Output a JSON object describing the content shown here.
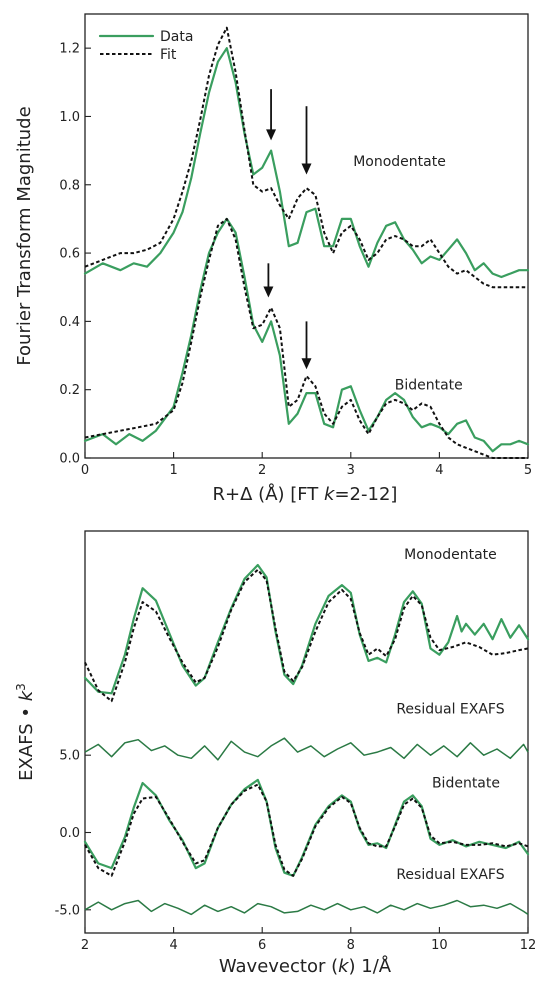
{
  "colors": {
    "data": "#3a9e5f",
    "fit": "#111111",
    "residual": "#2b7a45",
    "frame": "#222222"
  },
  "chart_data": [
    {
      "type": "line",
      "xlabel_parts": [
        "R+Δ (Å) [FT ",
        "k",
        "=2-12]"
      ],
      "ylabel": "Fourier Transform Magnitude",
      "xlim": [
        0,
        5
      ],
      "ylim": [
        0,
        1.3
      ],
      "x_ticks": [
        0,
        1,
        2,
        3,
        4,
        5
      ],
      "x_tick_labels": [
        "0",
        "1",
        "2",
        "3",
        "4",
        "5"
      ],
      "y_ticks": [
        0.0,
        0.2,
        0.4,
        0.6,
        0.8,
        1.0,
        1.2
      ],
      "y_tick_labels": [
        "0.0",
        "0.2",
        "0.4",
        "0.6",
        "0.8",
        "1.0",
        "1.2"
      ],
      "legend": {
        "position": "top-left",
        "entries": [
          {
            "label": "Data",
            "style": "solid"
          },
          {
            "label": "Fit",
            "style": "dashed"
          }
        ]
      },
      "annotations": [
        {
          "text": "Monodentate",
          "x": 3.55,
          "y": 0.855
        },
        {
          "text": "Bidentate",
          "x": 3.88,
          "y": 0.2
        }
      ],
      "arrows": [
        {
          "x": 2.1,
          "y_from": 1.08,
          "y_to": 0.93
        },
        {
          "x": 2.5,
          "y_from": 1.03,
          "y_to": 0.83
        },
        {
          "x": 2.07,
          "y_from": 0.57,
          "y_to": 0.47
        },
        {
          "x": 2.5,
          "y_from": 0.4,
          "y_to": 0.26
        }
      ],
      "series": [
        {
          "name": "Data",
          "group": "Monodentate",
          "style": "solid",
          "x": [
            0,
            0.2,
            0.4,
            0.55,
            0.7,
            0.85,
            1.0,
            1.1,
            1.2,
            1.3,
            1.4,
            1.5,
            1.6,
            1.7,
            1.8,
            1.9,
            2.0,
            2.1,
            2.2,
            2.3,
            2.4,
            2.5,
            2.6,
            2.7,
            2.8,
            2.9,
            3.0,
            3.1,
            3.2,
            3.3,
            3.4,
            3.5,
            3.6,
            3.7,
            3.8,
            3.9,
            4.0,
            4.1,
            4.2,
            4.3,
            4.4,
            4.5,
            4.6,
            4.7,
            4.8,
            4.9,
            5.0
          ],
          "y": [
            0.54,
            0.57,
            0.55,
            0.57,
            0.56,
            0.6,
            0.66,
            0.72,
            0.82,
            0.95,
            1.07,
            1.16,
            1.2,
            1.1,
            0.95,
            0.83,
            0.85,
            0.9,
            0.78,
            0.62,
            0.63,
            0.72,
            0.73,
            0.62,
            0.62,
            0.7,
            0.7,
            0.62,
            0.56,
            0.63,
            0.68,
            0.69,
            0.64,
            0.61,
            0.57,
            0.59,
            0.58,
            0.61,
            0.64,
            0.6,
            0.55,
            0.57,
            0.54,
            0.53,
            0.54,
            0.55,
            0.55
          ]
        },
        {
          "name": "Fit",
          "group": "Monodentate",
          "style": "dashed",
          "x": [
            0,
            0.2,
            0.4,
            0.55,
            0.7,
            0.85,
            1.0,
            1.1,
            1.2,
            1.3,
            1.4,
            1.5,
            1.6,
            1.7,
            1.8,
            1.9,
            2.0,
            2.1,
            2.2,
            2.3,
            2.4,
            2.5,
            2.6,
            2.7,
            2.8,
            2.9,
            3.0,
            3.1,
            3.2,
            3.3,
            3.4,
            3.5,
            3.6,
            3.7,
            3.8,
            3.9,
            4.0,
            4.1,
            4.2,
            4.3,
            4.4,
            4.5,
            4.6,
            4.7,
            4.8,
            4.9,
            5.0
          ],
          "y": [
            0.56,
            0.58,
            0.6,
            0.6,
            0.61,
            0.63,
            0.7,
            0.78,
            0.87,
            0.99,
            1.12,
            1.21,
            1.26,
            1.13,
            0.96,
            0.8,
            0.78,
            0.79,
            0.74,
            0.7,
            0.76,
            0.79,
            0.77,
            0.66,
            0.6,
            0.66,
            0.68,
            0.64,
            0.58,
            0.6,
            0.64,
            0.65,
            0.64,
            0.62,
            0.62,
            0.64,
            0.6,
            0.56,
            0.54,
            0.55,
            0.53,
            0.51,
            0.5,
            0.5,
            0.5,
            0.5,
            0.5
          ]
        },
        {
          "name": "Data",
          "group": "Bidentate",
          "style": "solid",
          "x": [
            0,
            0.2,
            0.35,
            0.5,
            0.65,
            0.8,
            1.0,
            1.1,
            1.2,
            1.3,
            1.4,
            1.5,
            1.6,
            1.7,
            1.8,
            1.9,
            2.0,
            2.1,
            2.2,
            2.3,
            2.4,
            2.5,
            2.6,
            2.7,
            2.8,
            2.9,
            3.0,
            3.1,
            3.2,
            3.3,
            3.4,
            3.5,
            3.6,
            3.7,
            3.8,
            3.9,
            4.0,
            4.1,
            4.2,
            4.3,
            4.4,
            4.5,
            4.6,
            4.7,
            4.8,
            4.9,
            5.0
          ],
          "y": [
            0.05,
            0.07,
            0.04,
            0.07,
            0.05,
            0.08,
            0.15,
            0.25,
            0.36,
            0.49,
            0.6,
            0.66,
            0.7,
            0.66,
            0.53,
            0.39,
            0.34,
            0.4,
            0.3,
            0.1,
            0.13,
            0.19,
            0.19,
            0.1,
            0.09,
            0.2,
            0.21,
            0.14,
            0.08,
            0.12,
            0.17,
            0.19,
            0.17,
            0.12,
            0.09,
            0.1,
            0.09,
            0.07,
            0.1,
            0.11,
            0.06,
            0.05,
            0.02,
            0.04,
            0.04,
            0.05,
            0.04
          ]
        },
        {
          "name": "Fit",
          "group": "Bidentate",
          "style": "dashed",
          "x": [
            0,
            0.2,
            0.4,
            0.6,
            0.8,
            1.0,
            1.1,
            1.2,
            1.3,
            1.4,
            1.5,
            1.6,
            1.7,
            1.8,
            1.9,
            2.0,
            2.1,
            2.2,
            2.3,
            2.4,
            2.5,
            2.6,
            2.7,
            2.8,
            2.9,
            3.0,
            3.1,
            3.2,
            3.3,
            3.4,
            3.5,
            3.6,
            3.7,
            3.8,
            3.9,
            4.0,
            4.1,
            4.2,
            4.3,
            4.4,
            4.5,
            4.6,
            4.7,
            4.8,
            4.9,
            5.0
          ],
          "y": [
            0.06,
            0.07,
            0.08,
            0.09,
            0.1,
            0.14,
            0.22,
            0.34,
            0.47,
            0.58,
            0.68,
            0.7,
            0.64,
            0.5,
            0.38,
            0.39,
            0.44,
            0.38,
            0.15,
            0.17,
            0.24,
            0.21,
            0.13,
            0.1,
            0.15,
            0.17,
            0.11,
            0.07,
            0.12,
            0.16,
            0.17,
            0.16,
            0.14,
            0.16,
            0.15,
            0.1,
            0.06,
            0.04,
            0.03,
            0.02,
            0.01,
            0.0,
            0.0,
            0.0,
            0.0,
            0.0
          ]
        }
      ]
    },
    {
      "type": "line",
      "xlabel_parts": [
        "Wavevector (",
        "k",
        ") 1/Å"
      ],
      "ylabel_parts": [
        "EXAFS • ",
        "k",
        "3"
      ],
      "xlim": [
        2,
        12
      ],
      "ylim": [
        -6.5,
        19.5
      ],
      "x_ticks": [
        2,
        4,
        6,
        8,
        10,
        12
      ],
      "x_tick_labels": [
        "2",
        "4",
        "6",
        "8",
        "10",
        "12"
      ],
      "y_ticks": [
        -5,
        0,
        5
      ],
      "y_tick_labels": [
        "-5.0",
        "0.0",
        "5.0"
      ],
      "annotations": [
        {
          "text": "Monodentate",
          "x": 10.25,
          "y": 17.7
        },
        {
          "text": "Residual EXAFS",
          "x": 10.25,
          "y": 7.7
        },
        {
          "text": "Bidentate",
          "x": 10.6,
          "y": 2.9
        },
        {
          "text": "Residual EXAFS",
          "x": 10.25,
          "y": -3.0
        }
      ],
      "series": [
        {
          "name": "Data",
          "group": "Monodentate",
          "style": "solid",
          "x": [
            2.0,
            2.3,
            2.6,
            2.9,
            3.1,
            3.3,
            3.6,
            3.9,
            4.2,
            4.5,
            4.7,
            5.0,
            5.3,
            5.6,
            5.9,
            6.1,
            6.3,
            6.5,
            6.7,
            6.9,
            7.2,
            7.5,
            7.8,
            8.0,
            8.2,
            8.4,
            8.6,
            8.8,
            9.0,
            9.2,
            9.4,
            9.6,
            9.8,
            10.0,
            10.2,
            10.4,
            10.5,
            10.6,
            10.8,
            11.0,
            11.2,
            11.4,
            11.6,
            11.8,
            12.0
          ],
          "y": [
            10.0,
            9.1,
            9.0,
            11.5,
            13.8,
            15.8,
            15.0,
            12.9,
            10.8,
            9.5,
            10.0,
            12.3,
            14.5,
            16.4,
            17.3,
            16.5,
            13.0,
            10.2,
            9.6,
            10.8,
            13.5,
            15.3,
            16.0,
            15.5,
            12.8,
            11.1,
            11.3,
            11.0,
            12.8,
            14.9,
            15.6,
            14.8,
            11.9,
            11.5,
            12.3,
            14.0,
            13.0,
            13.5,
            12.8,
            13.5,
            12.5,
            13.8,
            12.6,
            13.4,
            12.5
          ]
        },
        {
          "name": "Fit",
          "group": "Monodentate",
          "style": "dashed",
          "x": [
            2.0,
            2.3,
            2.6,
            2.9,
            3.1,
            3.3,
            3.6,
            3.9,
            4.2,
            4.5,
            4.7,
            5.0,
            5.3,
            5.6,
            5.9,
            6.1,
            6.3,
            6.5,
            6.7,
            6.9,
            7.2,
            7.5,
            7.8,
            8.0,
            8.2,
            8.4,
            8.6,
            8.8,
            9.0,
            9.2,
            9.4,
            9.6,
            9.8,
            10.0,
            10.3,
            10.6,
            10.9,
            11.2,
            11.5,
            11.8,
            12.0
          ],
          "y": [
            11.0,
            9.2,
            8.5,
            11.0,
            13.2,
            14.9,
            14.3,
            12.6,
            11.0,
            9.7,
            10.0,
            12.0,
            14.4,
            16.2,
            17.0,
            16.3,
            13.2,
            10.4,
            9.8,
            10.7,
            13.0,
            14.9,
            15.7,
            15.1,
            12.9,
            11.5,
            11.9,
            11.4,
            12.5,
            14.5,
            15.3,
            14.7,
            12.6,
            11.8,
            12.0,
            12.3,
            12.0,
            11.5,
            11.6,
            11.8,
            11.9
          ]
        },
        {
          "name": "Residual EXAFS",
          "group": "Monodentate",
          "style": "solid",
          "x": [
            2.0,
            2.3,
            2.6,
            2.9,
            3.2,
            3.5,
            3.8,
            4.1,
            4.4,
            4.7,
            5.0,
            5.3,
            5.6,
            5.9,
            6.2,
            6.5,
            6.8,
            7.1,
            7.4,
            7.7,
            8.0,
            8.3,
            8.6,
            8.9,
            9.2,
            9.5,
            9.8,
            10.1,
            10.4,
            10.7,
            11.0,
            11.3,
            11.6,
            11.9,
            12.0
          ],
          "y": [
            5.2,
            5.7,
            4.9,
            5.8,
            6.0,
            5.3,
            5.6,
            5.0,
            4.8,
            5.6,
            4.7,
            5.9,
            5.2,
            4.9,
            5.6,
            6.1,
            5.2,
            5.6,
            4.9,
            5.4,
            5.8,
            5.0,
            5.2,
            5.5,
            4.8,
            5.7,
            5.0,
            5.6,
            4.9,
            5.8,
            5.0,
            5.4,
            4.8,
            5.7,
            5.2
          ]
        },
        {
          "name": "Data",
          "group": "Bidentate",
          "style": "solid",
          "x": [
            2.0,
            2.3,
            2.6,
            2.9,
            3.1,
            3.3,
            3.6,
            3.9,
            4.2,
            4.5,
            4.7,
            5.0,
            5.3,
            5.6,
            5.9,
            6.1,
            6.3,
            6.5,
            6.7,
            6.9,
            7.2,
            7.5,
            7.8,
            8.0,
            8.2,
            8.4,
            8.6,
            8.8,
            9.0,
            9.2,
            9.4,
            9.6,
            9.8,
            10.0,
            10.3,
            10.6,
            10.9,
            11.2,
            11.5,
            11.8,
            12.0
          ],
          "y": [
            -0.6,
            -2.0,
            -2.3,
            -0.3,
            1.6,
            3.2,
            2.4,
            0.8,
            -0.5,
            -2.3,
            -2.0,
            0.3,
            1.8,
            2.8,
            3.4,
            2.0,
            -1.0,
            -2.6,
            -2.8,
            -1.6,
            0.5,
            1.7,
            2.4,
            2.0,
            0.2,
            -0.8,
            -0.7,
            -1.0,
            0.5,
            2.0,
            2.4,
            1.7,
            -0.4,
            -0.8,
            -0.5,
            -0.9,
            -0.6,
            -0.8,
            -1.0,
            -0.6,
            -1.4
          ]
        },
        {
          "name": "Fit",
          "group": "Bidentate",
          "style": "dashed",
          "x": [
            2.0,
            2.3,
            2.6,
            2.9,
            3.1,
            3.3,
            3.6,
            3.9,
            4.2,
            4.5,
            4.7,
            5.0,
            5.3,
            5.6,
            5.9,
            6.1,
            6.3,
            6.5,
            6.7,
            6.9,
            7.2,
            7.5,
            7.8,
            8.0,
            8.2,
            8.4,
            8.6,
            8.8,
            9.0,
            9.2,
            9.4,
            9.6,
            9.8,
            10.0,
            10.3,
            10.6,
            10.9,
            11.2,
            11.5,
            11.8,
            12.0
          ],
          "y": [
            -0.8,
            -2.3,
            -2.8,
            -0.6,
            1.2,
            2.2,
            2.3,
            0.9,
            -0.6,
            -2.0,
            -1.8,
            0.3,
            1.8,
            2.7,
            3.1,
            2.0,
            -0.8,
            -2.4,
            -2.8,
            -1.7,
            0.4,
            1.6,
            2.3,
            1.9,
            0.3,
            -0.7,
            -0.9,
            -0.9,
            0.4,
            1.8,
            2.2,
            1.6,
            -0.2,
            -0.7,
            -0.6,
            -0.8,
            -0.8,
            -0.7,
            -0.9,
            -0.7,
            -0.9
          ]
        },
        {
          "name": "Residual EXAFS",
          "group": "Bidentate",
          "style": "solid",
          "x": [
            2.0,
            2.3,
            2.6,
            2.9,
            3.2,
            3.5,
            3.8,
            4.1,
            4.4,
            4.7,
            5.0,
            5.3,
            5.6,
            5.9,
            6.2,
            6.5,
            6.8,
            7.1,
            7.4,
            7.7,
            8.0,
            8.3,
            8.6,
            8.9,
            9.2,
            9.5,
            9.8,
            10.1,
            10.4,
            10.7,
            11.0,
            11.3,
            11.6,
            11.9,
            12.0
          ],
          "y": [
            -5.0,
            -4.5,
            -5.0,
            -4.6,
            -4.4,
            -5.1,
            -4.6,
            -4.9,
            -5.3,
            -4.7,
            -5.1,
            -4.8,
            -5.2,
            -4.6,
            -4.8,
            -5.2,
            -5.1,
            -4.7,
            -5.0,
            -4.6,
            -5.0,
            -4.8,
            -5.2,
            -4.7,
            -5.0,
            -4.6,
            -4.9,
            -4.7,
            -4.4,
            -4.8,
            -4.7,
            -4.9,
            -4.6,
            -5.1,
            -5.3
          ]
        }
      ]
    }
  ]
}
